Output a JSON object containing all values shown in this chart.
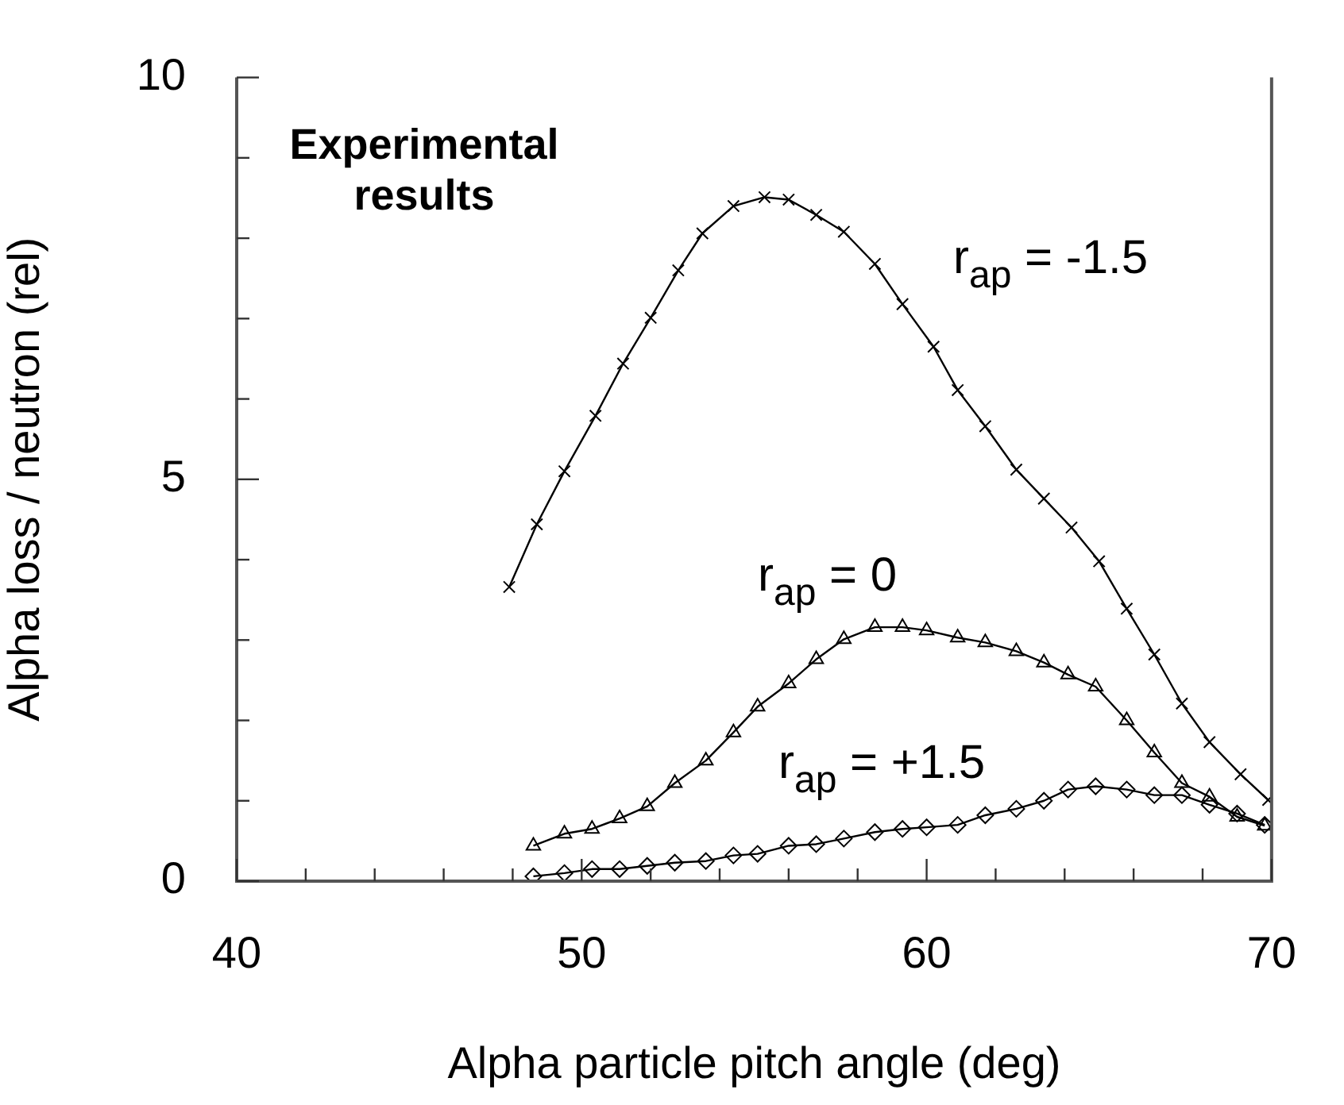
{
  "chart_data": {
    "type": "line",
    "xlabel": "Alpha particle pitch angle (deg)",
    "ylabel": "Alpha loss / neutron (rel)",
    "xlim": [
      40,
      70
    ],
    "xticks": [
      40,
      {
        "value": 42,
        "label": null
      },
      {
        "value": 44,
        "label": null
      },
      {
        "value": 46,
        "label": null
      },
      {
        "value": 48,
        "label": null
      },
      50,
      {
        "value": 52,
        "label": null
      },
      {
        "value": 54,
        "label": null
      },
      {
        "value": 56,
        "label": null
      },
      {
        "value": 58,
        "label": null
      },
      60,
      {
        "value": 62,
        "label": null
      },
      {
        "value": 64,
        "label": null
      },
      {
        "value": 66,
        "label": null
      },
      {
        "value": 68,
        "label": null
      },
      70
    ],
    "ylim": [
      0,
      10
    ],
    "yticks": [
      0,
      {
        "value": 1,
        "label": null
      },
      {
        "value": 2,
        "label": null
      },
      {
        "value": 3,
        "label": null
      },
      {
        "value": 4,
        "label": null
      },
      5,
      {
        "value": 6,
        "label": null
      },
      {
        "value": 7,
        "label": null
      },
      {
        "value": 8,
        "label": null
      },
      {
        "value": 9,
        "label": null
      },
      10
    ],
    "annotations": [
      "Experimental results"
    ],
    "legend": false,
    "line_style": "solid",
    "series": [
      {
        "name": "r$_{ap}$ = -1.5",
        "color": "#000000",
        "marker": "cross",
        "x": [
          47.9,
          48.7,
          49.5,
          50.4,
          51.2,
          52.0,
          52.8,
          53.5,
          54.4,
          55.3,
          56.0,
          56.8,
          57.6,
          58.5,
          59.3,
          60.2,
          60.9,
          61.7,
          62.6,
          63.4,
          64.2,
          65.0,
          65.8,
          66.6,
          67.4,
          68.2,
          69.1,
          69.9
        ],
        "values": [
          3.66,
          4.44,
          5.1,
          5.79,
          6.44,
          7.01,
          7.6,
          8.06,
          8.4,
          8.51,
          8.48,
          8.29,
          8.08,
          7.68,
          7.18,
          6.65,
          6.11,
          5.66,
          5.12,
          4.76,
          4.4,
          3.98,
          3.39,
          2.82,
          2.21,
          1.73,
          1.33,
          1.01
        ]
      },
      {
        "name": "r$_{ap}$ = 0",
        "color": "#000000",
        "marker": "triangle",
        "x": [
          48.6,
          49.5,
          50.3,
          51.1,
          51.9,
          52.7,
          53.6,
          54.4,
          55.1,
          56.0,
          56.8,
          57.6,
          58.5,
          59.3,
          60.0,
          60.9,
          61.7,
          62.6,
          63.4,
          64.1,
          64.9,
          65.8,
          66.6,
          67.4,
          68.2,
          69.0,
          69.8
        ],
        "values": [
          0.44,
          0.59,
          0.65,
          0.78,
          0.93,
          1.22,
          1.5,
          1.85,
          2.17,
          2.46,
          2.76,
          3.01,
          3.16,
          3.16,
          3.12,
          3.03,
          2.97,
          2.86,
          2.72,
          2.57,
          2.42,
          2.0,
          1.6,
          1.22,
          1.05,
          0.8,
          0.69
        ]
      },
      {
        "name": "r$_{ap}$ = +1.5",
        "color": "#000000",
        "marker": "diamond",
        "x": [
          48.6,
          49.5,
          50.3,
          51.1,
          51.9,
          52.7,
          53.6,
          54.4,
          55.1,
          56.0,
          56.8,
          57.6,
          58.5,
          59.3,
          60.0,
          60.9,
          61.7,
          62.6,
          63.4,
          64.1,
          64.9,
          65.8,
          66.6,
          67.4,
          68.2,
          69.0,
          69.8
        ],
        "values": [
          0.06,
          0.1,
          0.15,
          0.15,
          0.19,
          0.23,
          0.25,
          0.32,
          0.34,
          0.44,
          0.46,
          0.53,
          0.61,
          0.65,
          0.67,
          0.7,
          0.82,
          0.9,
          1.0,
          1.14,
          1.18,
          1.14,
          1.07,
          1.07,
          0.95,
          0.84,
          0.7
        ]
      }
    ]
  }
}
